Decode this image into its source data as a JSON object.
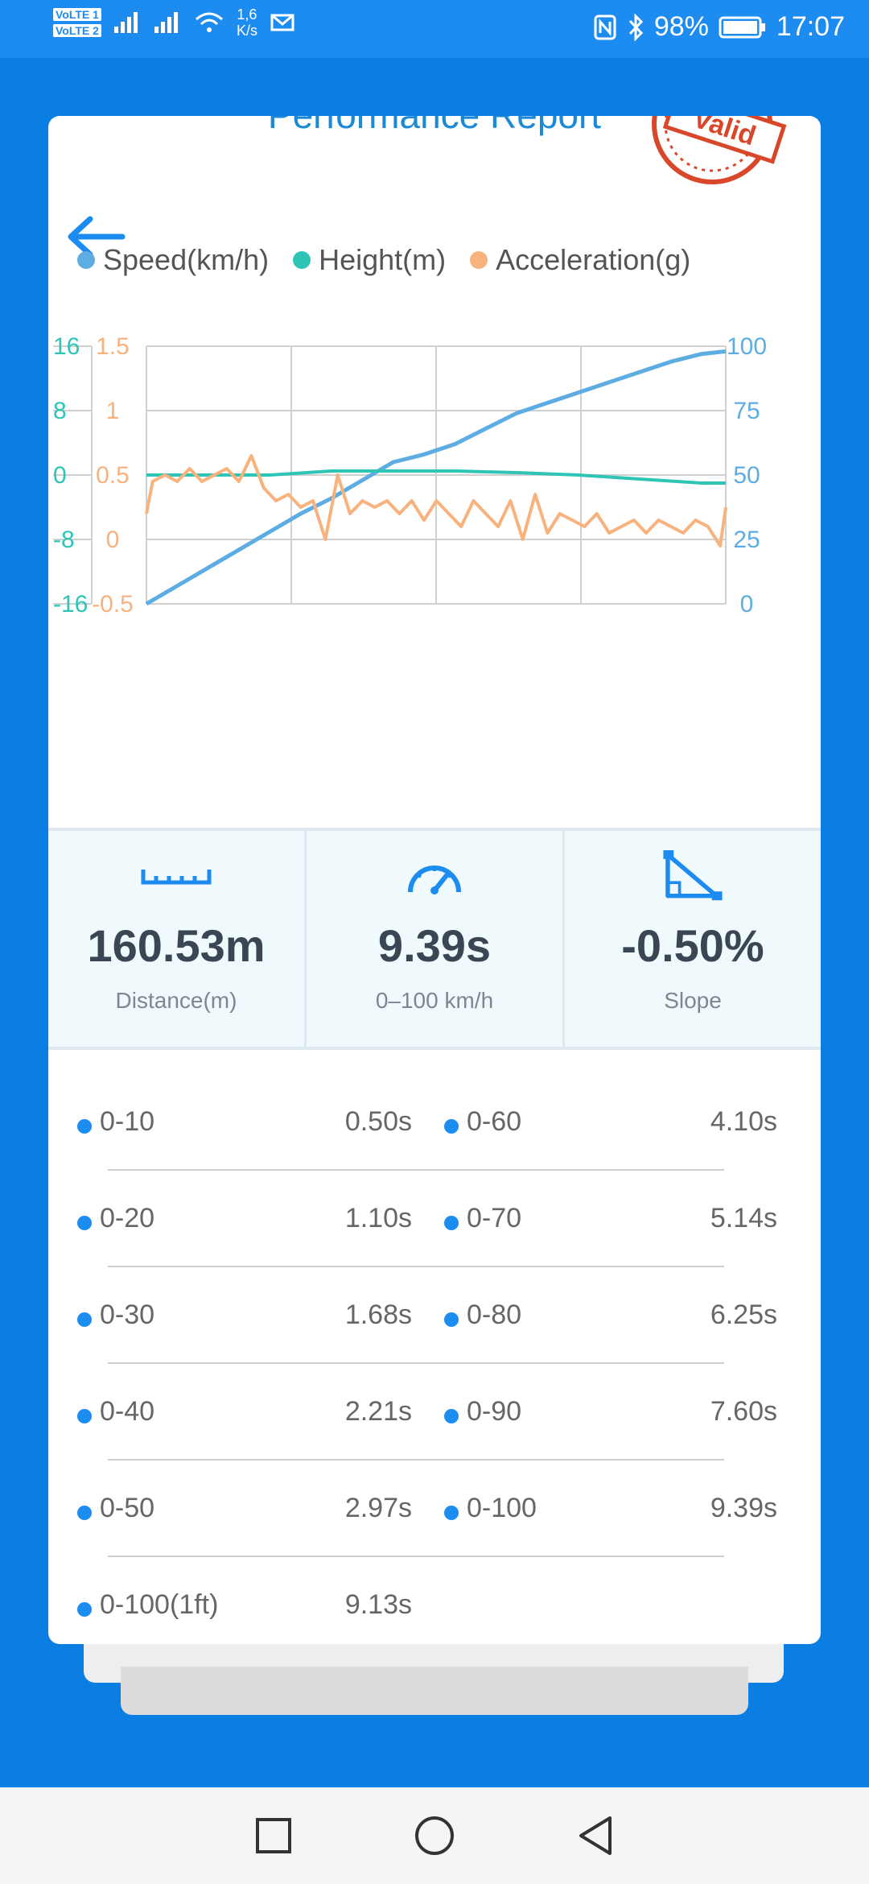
{
  "status_bar": {
    "volte1": "VoLTE 1",
    "volte2": "VoLTE 2",
    "net_speed": "1,6",
    "net_unit": "K/s",
    "battery": "98%",
    "time": "17:07"
  },
  "report": {
    "title": "Performance Report",
    "stamp_text": "Valid"
  },
  "legend": {
    "speed": "Speed(km/h)",
    "height": "Height(m)",
    "acceleration": "Acceleration(g)"
  },
  "colors": {
    "speed": "#5dade2",
    "height": "#2ec4b6",
    "acceleration": "#f8b27e",
    "accent": "#1d8cf0",
    "stamp": "#d9472b"
  },
  "chart_data": {
    "type": "line",
    "axes": {
      "height_ticks": [
        "16",
        "8",
        "0",
        "-8",
        "-16"
      ],
      "accel_ticks": [
        "1.5",
        "1",
        "0.5",
        "0",
        "-0.5"
      ],
      "speed_ticks": [
        "100",
        "75",
        "50",
        "25",
        "0"
      ],
      "height_range": [
        -16,
        16
      ],
      "accel_range": [
        -0.5,
        1.5
      ],
      "speed_range": [
        0,
        100
      ]
    },
    "grid": true,
    "series": [
      {
        "name": "Speed(km/h)",
        "axis": "speed",
        "x": [
          0,
          0.5,
          1,
          1.5,
          2,
          2.5,
          3,
          3.5,
          4,
          4.5,
          5,
          5.5,
          6,
          6.5,
          7,
          7.5,
          8,
          8.5,
          9,
          9.39
        ],
        "values": [
          0,
          7,
          14,
          21,
          28,
          35,
          41,
          48,
          55,
          58,
          62,
          68,
          74,
          78,
          82,
          86,
          90,
          94,
          97,
          98
        ]
      },
      {
        "name": "Height(m)",
        "axis": "height",
        "x": [
          0,
          1,
          2,
          3,
          4,
          5,
          6,
          7,
          8,
          9,
          9.39
        ],
        "values": [
          0,
          0,
          0,
          0.5,
          0.5,
          0.5,
          0.3,
          0,
          -0.5,
          -1,
          -1
        ]
      },
      {
        "name": "Acceleration(g)",
        "axis": "acceleration",
        "x": [
          0,
          0.1,
          0.3,
          0.5,
          0.7,
          0.9,
          1.1,
          1.3,
          1.5,
          1.7,
          1.9,
          2.1,
          2.3,
          2.5,
          2.7,
          2.9,
          3.1,
          3.3,
          3.5,
          3.7,
          3.9,
          4.1,
          4.3,
          4.5,
          4.7,
          4.9,
          5.1,
          5.3,
          5.5,
          5.7,
          5.9,
          6.1,
          6.3,
          6.5,
          6.7,
          6.9,
          7.1,
          7.3,
          7.5,
          7.7,
          7.9,
          8.1,
          8.3,
          8.5,
          8.7,
          8.9,
          9.1,
          9.3,
          9.39
        ],
        "values": [
          0.2,
          0.45,
          0.5,
          0.45,
          0.55,
          0.45,
          0.5,
          0.55,
          0.45,
          0.65,
          0.4,
          0.3,
          0.35,
          0.25,
          0.3,
          0.0,
          0.5,
          0.2,
          0.3,
          0.25,
          0.3,
          0.2,
          0.3,
          0.15,
          0.3,
          0.2,
          0.1,
          0.3,
          0.2,
          0.1,
          0.3,
          0.0,
          0.35,
          0.05,
          0.2,
          0.15,
          0.1,
          0.2,
          0.05,
          0.1,
          0.15,
          0.05,
          0.15,
          0.1,
          0.05,
          0.15,
          0.1,
          -0.05,
          0.25
        ]
      }
    ]
  },
  "stats": [
    {
      "value": "160.53m",
      "label": "Distance(m)",
      "icon": "ruler-icon"
    },
    {
      "value": "9.39s",
      "label": "0–100 km/h",
      "icon": "speedometer-icon"
    },
    {
      "value": "-0.50%",
      "label": "Slope",
      "icon": "slope-icon"
    }
  ],
  "splits": {
    "left": [
      {
        "range": "0-10",
        "time": "0.50s"
      },
      {
        "range": "0-20",
        "time": "1.10s"
      },
      {
        "range": "0-30",
        "time": "1.68s"
      },
      {
        "range": "0-40",
        "time": "2.21s"
      },
      {
        "range": "0-50",
        "time": "2.97s"
      },
      {
        "range": "0-100(1ft)",
        "time": "9.13s"
      }
    ],
    "right": [
      {
        "range": "0-60",
        "time": "4.10s"
      },
      {
        "range": "0-70",
        "time": "5.14s"
      },
      {
        "range": "0-80",
        "time": "6.25s"
      },
      {
        "range": "0-90",
        "time": "7.60s"
      },
      {
        "range": "0-100",
        "time": "9.39s"
      }
    ]
  }
}
